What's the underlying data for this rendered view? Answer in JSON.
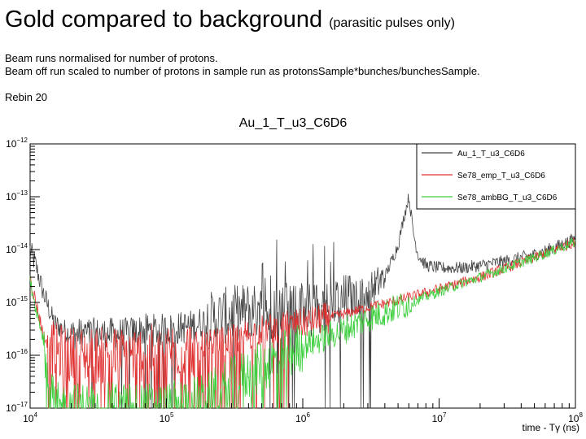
{
  "slide": {
    "title": "Gold compared to background",
    "title_note": "(parasitic pulses only)",
    "line1": "Beam runs normalised for number of protons.",
    "line2": "Beam off run scaled to number of protons in sample run as protonsSample*bunches/bunchesSample.",
    "line3": "Rebin 20"
  },
  "chart_data": {
    "type": "line",
    "title": "Au_1_T_u3_C6D6",
    "xlabel": "time - Tγ (ns)",
    "ylabel": "",
    "xscale": "log",
    "yscale": "log",
    "xlim": [
      10000,
      100000000
    ],
    "ylim": [
      1e-17,
      1e-12
    ],
    "x_ticks": [
      {
        "value": 10000,
        "base": "10",
        "exp": "4"
      },
      {
        "value": 100000,
        "base": "10",
        "exp": "5"
      },
      {
        "value": 1000000,
        "base": "10",
        "exp": "6"
      },
      {
        "value": 10000000,
        "base": "10",
        "exp": "7"
      },
      {
        "value": 100000000,
        "base": "10",
        "exp": "8"
      }
    ],
    "y_ticks": [
      {
        "value": 1e-12,
        "base": "10",
        "exp": "−12"
      },
      {
        "value": 1e-13,
        "base": "10",
        "exp": "−13"
      },
      {
        "value": 1e-14,
        "base": "10",
        "exp": "−14"
      },
      {
        "value": 1e-15,
        "base": "10",
        "exp": "−15"
      },
      {
        "value": 1e-16,
        "base": "10",
        "exp": "−16"
      },
      {
        "value": 1e-17,
        "base": "10",
        "exp": "−17"
      }
    ],
    "legend_position": "top-right",
    "series": [
      {
        "name": "Au_1_T_u3_C6D6",
        "color": "#444444",
        "x": [
          10000,
          11000,
          12500,
          15000,
          20000,
          30000,
          50000,
          70000,
          100000,
          150000,
          200000,
          300000,
          400000,
          500000,
          700000,
          1000000,
          1500000,
          2000000,
          3000000,
          4000000,
          5000000,
          5500000,
          6000000,
          6500000,
          7000000,
          8000000,
          10000000,
          15000000,
          20000000,
          30000000,
          50000000,
          70000000,
          100000000
        ],
        "y": [
          1e-14,
          5e-15,
          1.5e-15,
          4e-16,
          2.5e-16,
          2.5e-16,
          2.5e-16,
          3e-16,
          3e-16,
          3.5e-16,
          4.5e-16,
          6e-16,
          7e-16,
          7e-16,
          7e-16,
          7e-16,
          8e-16,
          1e-15,
          1.5e-15,
          3e-15,
          1.2e-14,
          4e-14,
          1e-13,
          2e-14,
          8e-15,
          5e-15,
          4.5e-15,
          4.5e-15,
          5e-15,
          6e-15,
          8e-15,
          1.1e-14,
          1.6e-14
        ]
      },
      {
        "name": "Se78_emp_T_u3_C6D6",
        "color": "#e03030",
        "x": [
          10000,
          11000,
          12500,
          15000,
          20000,
          50000,
          100000,
          200000,
          300000,
          500000,
          1000000,
          2000000,
          3000000,
          5000000,
          10000000,
          20000000,
          50000000,
          100000000
        ],
        "y": [
          3e-15,
          1e-15,
          2.5e-16,
          1.2e-16,
          1e-16,
          1e-16,
          1.2e-16,
          1.5e-16,
          2e-16,
          3e-16,
          4e-16,
          6e-16,
          8e-16,
          1.1e-15,
          1.8e-15,
          3e-15,
          7e-15,
          1.4e-14
        ]
      },
      {
        "name": "Se78_ambBG_T_u3_C6D6",
        "color": "#3ecf3e",
        "x": [
          10000,
          11000,
          12500,
          15000,
          20000,
          50000,
          100000,
          200000,
          300000,
          500000,
          1000000,
          2000000,
          3000000,
          5000000,
          10000000,
          20000000,
          50000000,
          100000000
        ],
        "y": [
          2.5e-15,
          8e-16,
          2e-16,
          1e-17,
          1e-17,
          1e-17,
          1e-17,
          1.5e-17,
          3e-17,
          6e-17,
          1.5e-16,
          3e-16,
          5e-16,
          8e-16,
          1.6e-15,
          3e-15,
          7e-15,
          1.4e-14
        ]
      }
    ]
  }
}
